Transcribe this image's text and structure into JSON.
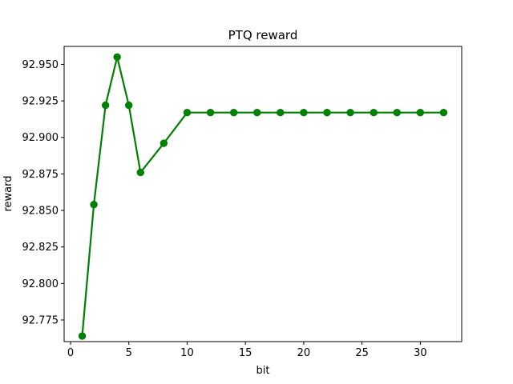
{
  "chart_data": {
    "type": "line",
    "title": "PTQ reward",
    "xlabel": "bit",
    "ylabel": "reward",
    "xlim": [
      -0.55,
      33.55
    ],
    "ylim": [
      92.7602,
      92.9623
    ],
    "x_ticks": [
      0,
      5,
      10,
      15,
      20,
      25,
      30
    ],
    "y_ticks": [
      92.775,
      92.8,
      92.825,
      92.85,
      92.875,
      92.9,
      92.925,
      92.95
    ],
    "y_tick_labels": [
      "92.775",
      "92.800",
      "92.825",
      "92.850",
      "92.875",
      "92.900",
      "92.925",
      "92.950"
    ],
    "grid": false,
    "legend": "none",
    "series": [
      {
        "color": "#008000",
        "marker": "circle",
        "x": [
          1,
          2,
          3,
          4,
          5,
          6,
          8,
          10,
          12,
          14,
          16,
          18,
          20,
          22,
          24,
          26,
          28,
          30,
          32
        ],
        "y": [
          92.764,
          92.854,
          92.922,
          92.955,
          92.922,
          92.876,
          92.896,
          92.917,
          92.917,
          92.917,
          92.917,
          92.917,
          92.917,
          92.917,
          92.917,
          92.917,
          92.917,
          92.917,
          92.917
        ]
      }
    ]
  }
}
